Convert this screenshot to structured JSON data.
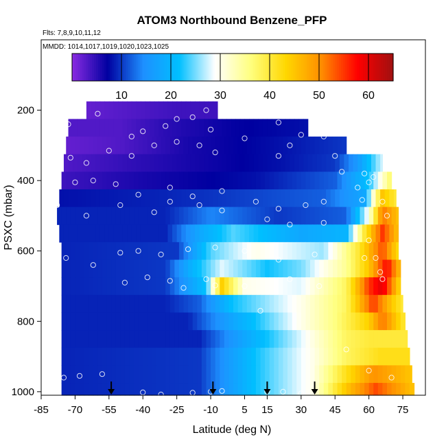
{
  "chart_data": {
    "type": "heatmap",
    "title": "ATOM3 Northbound Benzene_PFP",
    "flights_label": "Flts: 7,8,9,10,11,12",
    "dates_label": "MMDD: 1014,1017,1019,1020,1023,1025",
    "xlabel": "Latitude (deg N)",
    "ylabel": "PSXC (mbar)",
    "xlim": [
      -85,
      85
    ],
    "ylim": [
      1010,
      0
    ],
    "x_ticks": [
      -85,
      -70,
      -55,
      -40,
      -25,
      -10,
      5,
      15,
      30,
      45,
      60,
      75
    ],
    "y_ticks": [
      200,
      400,
      600,
      800,
      1000
    ],
    "colorbar": {
      "range": [
        0,
        65
      ],
      "ticks": [
        10,
        20,
        30,
        40,
        50,
        60
      ],
      "colors": [
        "#8a2be2",
        "#0000a0",
        "#1e90ff",
        "#00bfff",
        "#ffffff",
        "#ffff80",
        "#ffd700",
        "#ff8c00",
        "#ff0000",
        "#a01010"
      ]
    },
    "bands": [
      {
        "p": 200,
        "latmin": -65,
        "latmax": -7,
        "seg": [
          [
            -65,
            2
          ],
          [
            -45,
            3
          ],
          [
            -25,
            4
          ],
          [
            -7,
            4
          ]
        ]
      },
      {
        "p": 250,
        "latmin": -73,
        "latmax": 33,
        "seg": [
          [
            -73,
            3
          ],
          [
            -50,
            3
          ],
          [
            -30,
            5
          ],
          [
            0,
            7
          ],
          [
            33,
            8
          ]
        ]
      },
      {
        "p": 300,
        "latmin": -74,
        "latmax": 50,
        "seg": [
          [
            -74,
            2
          ],
          [
            -50,
            3
          ],
          [
            -20,
            6
          ],
          [
            20,
            8
          ],
          [
            50,
            10
          ]
        ]
      },
      {
        "p": 350,
        "latmin": -75,
        "latmax": 66,
        "seg": [
          [
            -75,
            3
          ],
          [
            -40,
            5
          ],
          [
            20,
            8
          ],
          [
            45,
            10
          ],
          [
            55,
            16
          ],
          [
            66,
            28
          ]
        ]
      },
      {
        "p": 400,
        "latmin": -76,
        "latmax": 70,
        "seg": [
          [
            -76,
            4
          ],
          [
            -40,
            6
          ],
          [
            10,
            8
          ],
          [
            45,
            12
          ],
          [
            60,
            22
          ],
          [
            70,
            38
          ]
        ]
      },
      {
        "p": 450,
        "latmin": -77,
        "latmax": 72,
        "seg": [
          [
            -77,
            8
          ],
          [
            -30,
            9
          ],
          [
            -5,
            10
          ],
          [
            40,
            12
          ],
          [
            58,
            18
          ],
          [
            66,
            45
          ],
          [
            72,
            40
          ]
        ]
      },
      {
        "p": 500,
        "latmin": -78,
        "latmax": 73,
        "seg": [
          [
            -78,
            9
          ],
          [
            -30,
            9
          ],
          [
            -10,
            14
          ],
          [
            20,
            10
          ],
          [
            50,
            12
          ],
          [
            60,
            30
          ],
          [
            66,
            52
          ],
          [
            73,
            45
          ]
        ]
      },
      {
        "p": 550,
        "latmin": -77,
        "latmax": 73,
        "seg": [
          [
            -77,
            9
          ],
          [
            -30,
            9
          ],
          [
            -15,
            18
          ],
          [
            0,
            24
          ],
          [
            30,
            18
          ],
          [
            50,
            20
          ],
          [
            58,
            40
          ],
          [
            66,
            55
          ],
          [
            73,
            45
          ]
        ]
      },
      {
        "p": 600,
        "latmin": -76,
        "latmax": 73,
        "seg": [
          [
            -76,
            9
          ],
          [
            -25,
            10
          ],
          [
            -10,
            24
          ],
          [
            10,
            30
          ],
          [
            40,
            26
          ],
          [
            55,
            40
          ],
          [
            66,
            54
          ],
          [
            73,
            42
          ]
        ]
      },
      {
        "p": 650,
        "latmin": -76,
        "latmax": 74,
        "seg": [
          [
            -76,
            9
          ],
          [
            -30,
            10
          ],
          [
            -18,
            20
          ],
          [
            -5,
            28
          ],
          [
            15,
            22
          ],
          [
            30,
            25
          ],
          [
            50,
            35
          ],
          [
            60,
            45
          ],
          [
            68,
            58
          ],
          [
            74,
            45
          ]
        ]
      },
      {
        "p": 700,
        "latmin": -76,
        "latmax": 74,
        "seg": [
          [
            -76,
            9
          ],
          [
            -30,
            10
          ],
          [
            -12,
            22
          ],
          [
            -5,
            44
          ],
          [
            5,
            30
          ],
          [
            30,
            28
          ],
          [
            50,
            38
          ],
          [
            60,
            55
          ],
          [
            66,
            60
          ],
          [
            74,
            42
          ]
        ]
      },
      {
        "p": 750,
        "latmin": -76,
        "latmax": 75,
        "seg": [
          [
            -76,
            9
          ],
          [
            -30,
            9
          ],
          [
            -15,
            12
          ],
          [
            0,
            22
          ],
          [
            30,
            30
          ],
          [
            50,
            38
          ],
          [
            62,
            55
          ],
          [
            70,
            45
          ],
          [
            75,
            40
          ]
        ]
      },
      {
        "p": 800,
        "latmin": -76,
        "latmax": 76,
        "seg": [
          [
            -76,
            9
          ],
          [
            -20,
            9
          ],
          [
            0,
            18
          ],
          [
            25,
            28
          ],
          [
            45,
            36
          ],
          [
            60,
            44
          ],
          [
            66,
            52
          ],
          [
            76,
            40
          ]
        ]
      },
      {
        "p": 850,
        "latmin": -76,
        "latmax": 77,
        "seg": [
          [
            -76,
            9
          ],
          [
            -15,
            9
          ],
          [
            5,
            18
          ],
          [
            30,
            28
          ],
          [
            50,
            38
          ],
          [
            60,
            40
          ],
          [
            77,
            40
          ]
        ]
      },
      {
        "p": 900,
        "latmin": -76,
        "latmax": 78,
        "seg": [
          [
            -76,
            9
          ],
          [
            -15,
            10
          ],
          [
            10,
            22
          ],
          [
            35,
            30
          ],
          [
            50,
            38
          ],
          [
            65,
            42
          ],
          [
            78,
            42
          ]
        ]
      },
      {
        "p": 950,
        "latmin": -76,
        "latmax": 79,
        "seg": [
          [
            -76,
            9
          ],
          [
            -15,
            10
          ],
          [
            10,
            22
          ],
          [
            35,
            30
          ],
          [
            50,
            42
          ],
          [
            62,
            50
          ],
          [
            79,
            45
          ]
        ]
      },
      {
        "p": 1000,
        "latmin": -76,
        "latmax": 80,
        "seg": [
          [
            -76,
            9
          ],
          [
            -15,
            10
          ],
          [
            10,
            22
          ],
          [
            35,
            30
          ],
          [
            50,
            45
          ],
          [
            63,
            54
          ],
          [
            80,
            45
          ]
        ]
      }
    ],
    "points": [
      [
        -73,
        240
      ],
      [
        -60,
        210
      ],
      [
        -45,
        275
      ],
      [
        -40,
        260
      ],
      [
        -30,
        245
      ],
      [
        -25,
        225
      ],
      [
        -18,
        220
      ],
      [
        -12,
        200
      ],
      [
        -10,
        255
      ],
      [
        20,
        235
      ],
      [
        25,
        300
      ],
      [
        30,
        270
      ],
      [
        40,
        275
      ],
      [
        50,
        250
      ],
      [
        -72,
        335
      ],
      [
        -65,
        350
      ],
      [
        -55,
        315
      ],
      [
        -45,
        330
      ],
      [
        -35,
        300
      ],
      [
        -25,
        290
      ],
      [
        -15,
        300
      ],
      [
        -8,
        320
      ],
      [
        5,
        280
      ],
      [
        20,
        330
      ],
      [
        45,
        330
      ],
      [
        48,
        375
      ],
      [
        58,
        380
      ],
      [
        62,
        390
      ],
      [
        -70,
        405
      ],
      [
        -62,
        400
      ],
      [
        -52,
        410
      ],
      [
        -42,
        440
      ],
      [
        -28,
        420
      ],
      [
        -18,
        445
      ],
      [
        -5,
        430
      ],
      [
        10,
        460
      ],
      [
        20,
        480
      ],
      [
        32,
        470
      ],
      [
        40,
        520
      ],
      [
        55,
        420
      ],
      [
        60,
        405
      ],
      [
        -78,
        470
      ],
      [
        -65,
        500
      ],
      [
        -50,
        470
      ],
      [
        -35,
        490
      ],
      [
        -28,
        460
      ],
      [
        -15,
        470
      ],
      [
        -5,
        485
      ],
      [
        15,
        510
      ],
      [
        25,
        525
      ],
      [
        40,
        460
      ],
      [
        57,
        455
      ],
      [
        66,
        460
      ],
      [
        68,
        500
      ],
      [
        -74,
        620
      ],
      [
        -62,
        640
      ],
      [
        -50,
        605
      ],
      [
        -42,
        600
      ],
      [
        -32,
        610
      ],
      [
        -20,
        595
      ],
      [
        -8,
        590
      ],
      [
        5,
        600
      ],
      [
        20,
        625
      ],
      [
        36,
        610
      ],
      [
        60,
        570
      ],
      [
        63,
        620
      ],
      [
        65,
        660
      ],
      [
        -48,
        690
      ],
      [
        -38,
        675
      ],
      [
        -28,
        685
      ],
      [
        -22,
        705
      ],
      [
        -12,
        680
      ],
      [
        -8,
        698
      ],
      [
        5,
        700
      ],
      [
        12,
        770
      ],
      [
        25,
        680
      ],
      [
        38,
        700
      ],
      [
        58,
        620
      ],
      [
        66,
        680
      ],
      [
        -75,
        960
      ],
      [
        -68,
        955
      ],
      [
        -58,
        950
      ],
      [
        -40,
        1002
      ],
      [
        -32,
        1008
      ],
      [
        -18,
        1003
      ],
      [
        -10,
        1000
      ],
      [
        -5,
        998
      ],
      [
        15,
        1000
      ],
      [
        22,
        1000
      ],
      [
        30,
        1005
      ],
      [
        50,
        880
      ],
      [
        60,
        940
      ],
      [
        70,
        960
      ]
    ],
    "arrows": [
      -54,
      -9,
      15,
      36
    ]
  }
}
